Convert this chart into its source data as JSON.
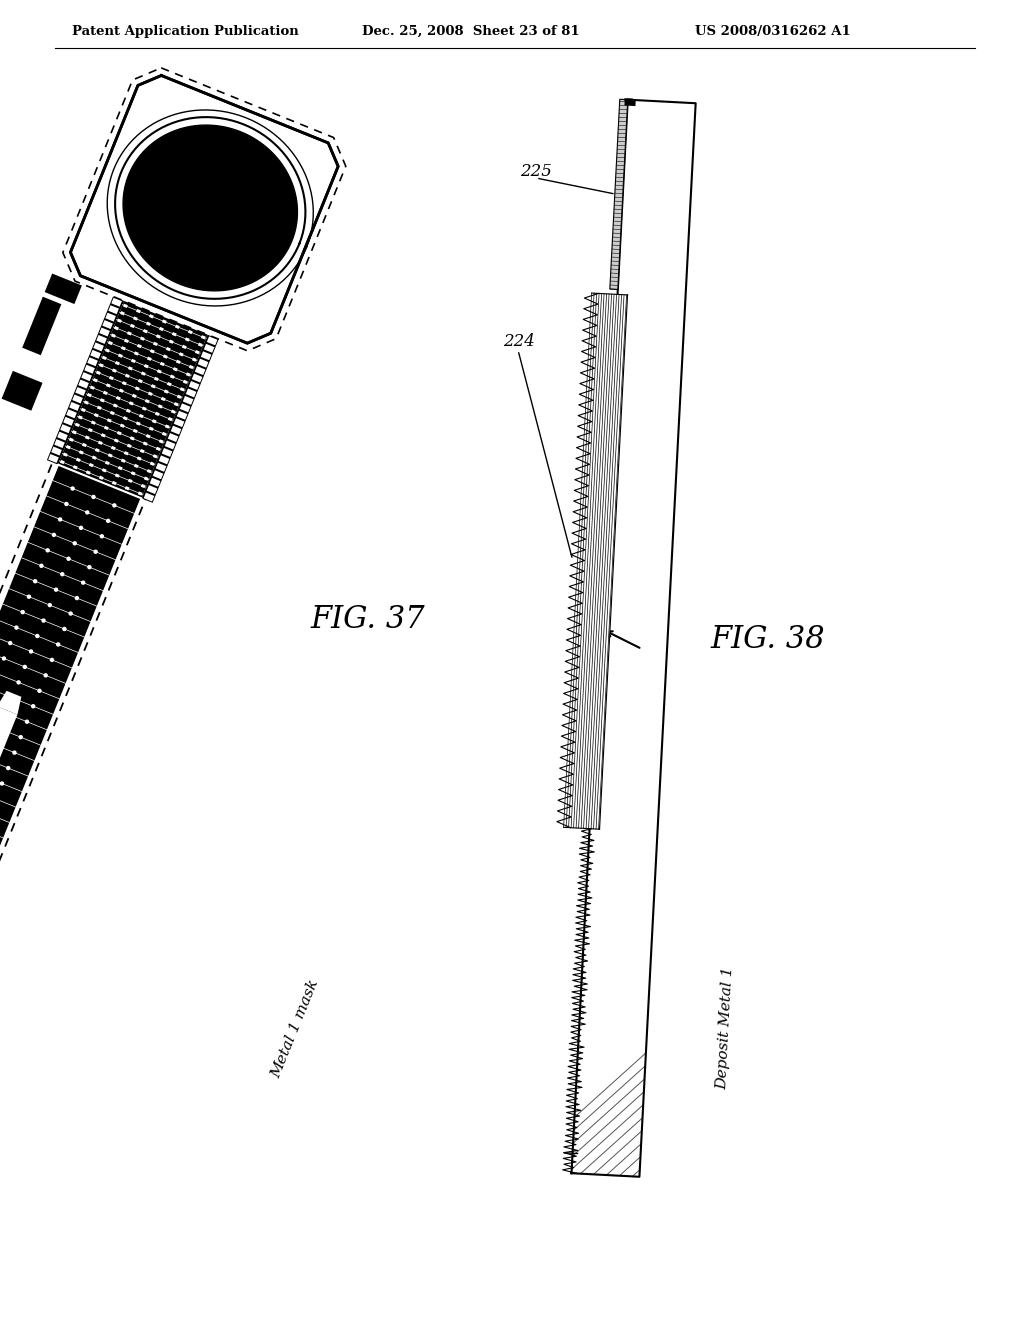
{
  "header_left": "Patent Application Publication",
  "header_mid": "Dec. 25, 2008  Sheet 23 of 81",
  "header_right": "US 2008/0316262 A1",
  "fig37_label": "FIG. 37",
  "fig38_label": "FIG. 38",
  "label_metal1mask": "Metal 1 mask",
  "label_deposit": "Deposit Metal 1",
  "label_224": "224",
  "label_225": "225",
  "bg_color": "#ffffff",
  "black": "#000000"
}
